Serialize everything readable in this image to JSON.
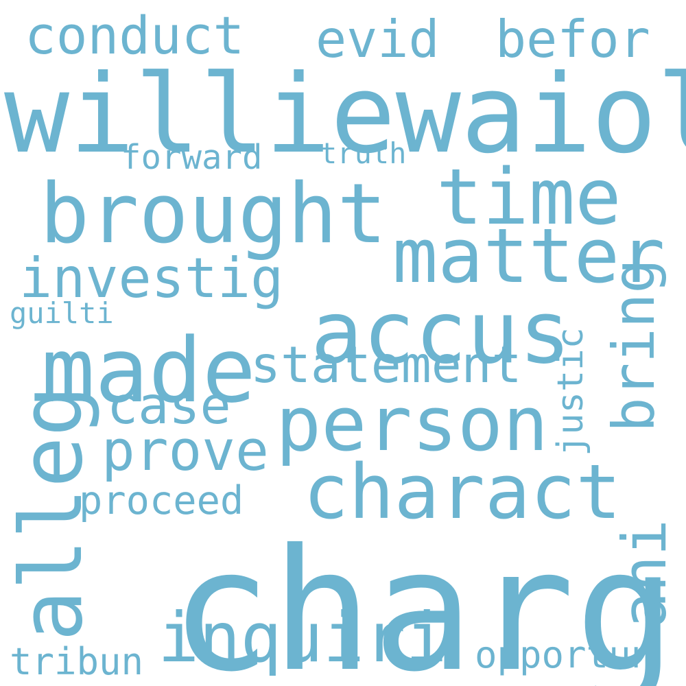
{
  "cloud": {
    "color": "#6cb4d0",
    "words": [
      "williewaiola",
      "charg",
      "brought",
      "time",
      "matter",
      "accus",
      "made",
      "person",
      "charact",
      "alleg",
      "inquiri",
      "conduct",
      "evid",
      "befor",
      "investig",
      "statement",
      "case",
      "prove",
      "bring",
      "justic",
      "ani",
      "proceed",
      "forward",
      "truth",
      "guilti",
      "tribun",
      "opportun"
    ]
  }
}
